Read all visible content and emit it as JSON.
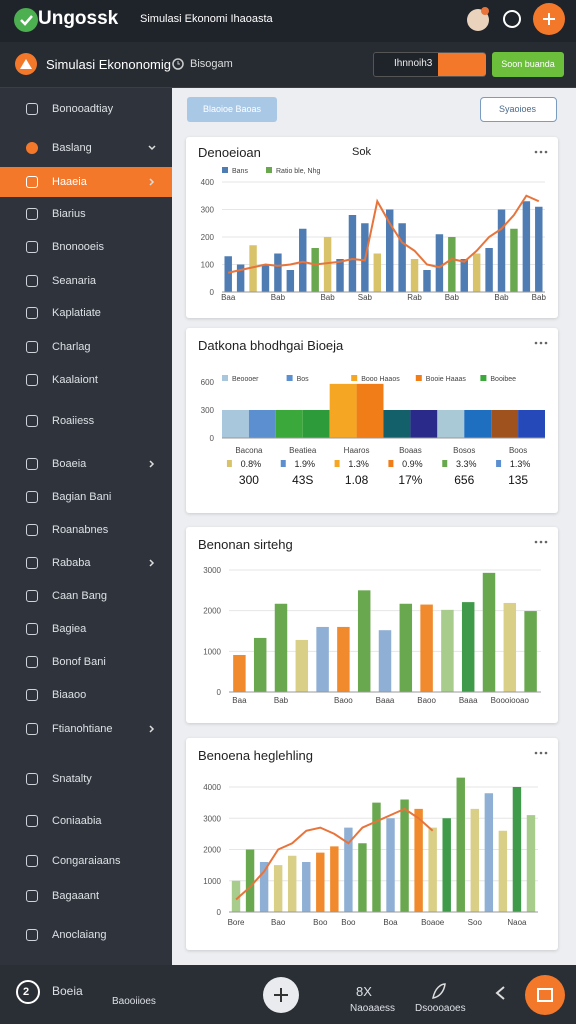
{
  "header": {
    "logo": "Ungossk",
    "title": "Simulasi Ekonomi Ihaoasta"
  },
  "toolbar": {
    "title": "Simulasi Ekononomig",
    "subtitle": "Bisogam",
    "button": "Ihnnoih3",
    "action": "Soon buanda"
  },
  "sidebar": {
    "active": 2,
    "items": [
      {
        "label": "Bonooadtiay",
        "expand": false
      },
      {
        "label": "Baslang",
        "expand": true
      },
      {
        "label": "Haaeia",
        "expand": true
      },
      {
        "label": "Biarius",
        "expand": false
      },
      {
        "label": "Bnonooeis",
        "expand": false
      },
      {
        "label": "Seanaria",
        "expand": false
      },
      {
        "label": "Kaplatiate",
        "expand": false
      },
      {
        "label": "Charlag",
        "expand": false
      },
      {
        "label": "Kaalaiont",
        "expand": false
      },
      {
        "label": "Roaiiess",
        "expand": false
      },
      {
        "label": "Boaeia",
        "expand": true
      },
      {
        "label": "Bagian Bani",
        "expand": false
      },
      {
        "label": "Roanabnes",
        "expand": false
      },
      {
        "label": "Rababa",
        "expand": true
      },
      {
        "label": "Caan Bang",
        "expand": false
      },
      {
        "label": "Bagiea",
        "expand": false
      },
      {
        "label": "Bonof Bani",
        "expand": false
      },
      {
        "label": "Biaaoo",
        "expand": false
      },
      {
        "label": "Ftianohtiane",
        "expand": true
      },
      {
        "label": "Snatalty",
        "expand": false
      },
      {
        "label": "Coniaabia",
        "expand": false
      },
      {
        "label": "Congaraiaans",
        "expand": false
      },
      {
        "label": "Bagaaant",
        "expand": false
      },
      {
        "label": "Anoclaiang",
        "expand": false
      }
    ]
  },
  "actions": {
    "primary": "Blaoioe Baoas",
    "secondary": "Syaoioes"
  },
  "panels": [
    {
      "title": "Denoeioan",
      "subtitle": "Sok",
      "chart": {
        "type": "bar",
        "grid": true,
        "ylim": [
          0,
          400
        ],
        "yticks": [
          0,
          100,
          200,
          300,
          400
        ],
        "legend": [
          {
            "name": "Bans",
            "color": "#4f7db3"
          },
          {
            "name": "Ratio ble, Nhg",
            "color": "#6aa84f"
          }
        ],
        "categories": [
          "Baa",
          null,
          null,
          null,
          "Bab",
          null,
          null,
          null,
          "Bab",
          null,
          null,
          "Sab",
          null,
          null,
          null,
          "Rab",
          null,
          null,
          "Bab",
          null,
          null,
          null,
          "Bab",
          null,
          null,
          "Bab"
        ],
        "values": [
          130,
          100,
          170,
          100,
          140,
          80,
          230,
          160,
          200,
          120,
          280,
          250,
          140,
          300,
          250,
          120,
          80,
          210,
          200,
          120,
          140,
          160,
          300,
          230,
          330,
          310
        ],
        "colors": [
          "#4f7db3",
          "#4f7db3",
          "#d9c36a",
          "#4f7db3",
          "#4f7db3",
          "#4f7db3",
          "#4f7db3",
          "#6aa84f",
          "#d9c36a",
          "#4f7db3",
          "#4f7db3",
          "#4f7db3",
          "#d9c36a",
          "#4f7db3",
          "#4f7db3",
          "#d9c36a",
          "#4f7db3",
          "#4f7db3",
          "#6aa84f",
          "#4f7db3",
          "#d9c36a",
          "#4f7db3",
          "#4f7db3",
          "#6aa84f",
          "#4f7db3",
          "#4f7db3"
        ],
        "line": [
          70,
          80,
          90,
          100,
          95,
          100,
          110,
          100,
          105,
          110,
          120,
          115,
          330,
          250,
          180,
          150,
          100,
          90,
          120,
          110,
          150,
          200,
          230,
          280,
          350,
          330
        ],
        "line_color": "#e8743b"
      }
    },
    {
      "title": "Datkona bhodhgai Bioeja",
      "chart": {
        "type": "block",
        "grid": false,
        "ylim": [
          0,
          600
        ],
        "yticks": [
          0,
          300,
          600
        ],
        "legend": [
          {
            "name": "Beoooer",
            "color": "#a8c6dc"
          },
          {
            "name": "Bos",
            "color": "#5b8fcf"
          },
          {
            "name": "Booo Haaos",
            "color": "#f5a623"
          },
          {
            "name": "Booie Haaas",
            "color": "#f07d18"
          },
          {
            "name": "Booibee",
            "color": "#3aa83a"
          }
        ],
        "categories": [
          null,
          null,
          null,
          null,
          null,
          null,
          null,
          null,
          null,
          null,
          null,
          null
        ],
        "values": [
          300,
          300,
          300,
          300,
          580,
          580,
          300,
          300,
          300,
          300,
          300,
          300
        ],
        "colors": [
          "#a8c6dc",
          "#5b8fcf",
          "#3aa83a",
          "#2e9b3a",
          "#f5a623",
          "#f07d18",
          "#14606a",
          "#2a2a8a",
          "#a9c9d6",
          "#1f6fc0",
          "#a0521e",
          "#2549b8"
        ]
      },
      "table": {
        "names": [
          "Bacona",
          "Beatiea",
          "Haaros",
          "Boaas",
          "Bosos",
          "Boos"
        ],
        "shares": [
          "0.8%",
          "1.9%",
          "1.3%",
          "0.9%",
          "3.3%",
          "1.3%"
        ],
        "colors": [
          "#d9c36a",
          "#5b8fcf",
          "#f5a623",
          "#f07d18",
          "#6aa84f",
          "#5b8fcf"
        ],
        "values": [
          "300",
          "43S",
          "1.08",
          "17%",
          "656",
          "135"
        ]
      }
    },
    {
      "title": "Benonan sirtehg",
      "chart": {
        "type": "bar",
        "grid": true,
        "ylim": [
          0,
          3000
        ],
        "yticks": [
          0,
          1000,
          2000,
          3000
        ],
        "categories": [
          "Baa",
          null,
          "Bab",
          null,
          null,
          "Baoo",
          null,
          "Baaa",
          null,
          "Baoo",
          null,
          "Baaa",
          null,
          "Boooiooao",
          null
        ],
        "values": [
          910,
          1330,
          2170,
          1280,
          1600,
          1600,
          2500,
          1520,
          2170,
          2150,
          2020,
          2210,
          2930,
          2190,
          1990
        ],
        "colors": [
          "#f08a2c",
          "#6aa84f",
          "#6aa84f",
          "#d9cf86",
          "#8fb0d4",
          "#f08a2c",
          "#6aa84f",
          "#8fb0d4",
          "#6aa84f",
          "#f08a2c",
          "#a8cc8c",
          "#3f9a4a",
          "#6aa84f",
          "#d9cf86",
          "#6aa84f"
        ]
      }
    },
    {
      "title": "Benoena heglehling",
      "chart": {
        "type": "bar",
        "grid": true,
        "ylim": [
          0,
          4000
        ],
        "yticks": [
          0,
          1000,
          2000,
          3000,
          4000
        ],
        "categories": [
          "Bore",
          null,
          null,
          "Bao",
          null,
          null,
          "Boo",
          null,
          "Boo",
          null,
          null,
          "Boa",
          null,
          null,
          "Boaoe",
          null,
          null,
          "Soo",
          null,
          null,
          "Naoa",
          null
        ],
        "values": [
          1000,
          2000,
          1600,
          1500,
          1800,
          1600,
          1900,
          2100,
          2700,
          2200,
          3500,
          3000,
          3600,
          3300,
          2700,
          3000,
          4300,
          3300,
          3800,
          2600,
          4000,
          3100
        ],
        "colors": [
          "#a8cc8c",
          "#6aa84f",
          "#8fb0d4",
          "#d9cf86",
          "#d9cf86",
          "#8fb0d4",
          "#f08a2c",
          "#f08a2c",
          "#8fb0d4",
          "#6aa84f",
          "#6aa84f",
          "#8fb0d4",
          "#6aa84f",
          "#f08a2c",
          "#d9cf86",
          "#3f9a4a",
          "#6aa84f",
          "#d9cf86",
          "#8fb0d4",
          "#d9cf86",
          "#3f9a4a",
          "#a8cc8c"
        ],
        "line": [
          400,
          800,
          1300,
          2000,
          2200,
          2600,
          2700,
          2500,
          2200,
          2700,
          2900,
          3100,
          3300,
          3000,
          2600,
          null,
          null,
          null,
          null,
          null,
          null,
          null
        ],
        "line_color": "#e8743b"
      }
    }
  ],
  "footer": {
    "badge": "2",
    "user": "Boeia",
    "label": "Baooiioes",
    "tabs": [
      {
        "icon": "8X",
        "label": "Naoaaess"
      },
      {
        "label": "Dsoooaoes"
      }
    ]
  }
}
